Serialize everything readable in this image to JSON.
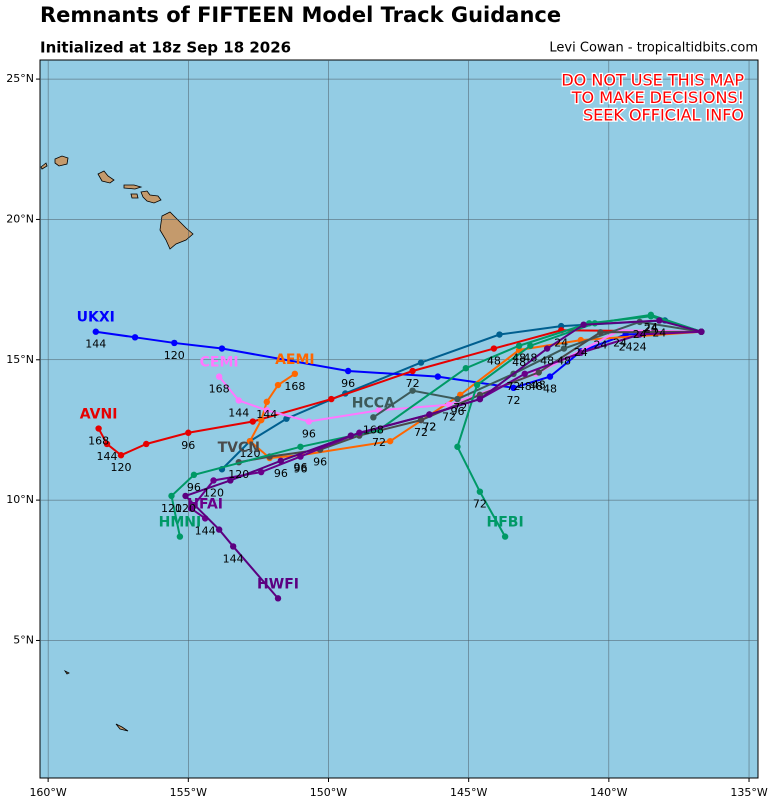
{
  "chart_data": {
    "type": "track-map",
    "title": "Remnants of FIFTEEN Model Track Guidance",
    "subtitle": "Initialized at 18z Sep 18 2026",
    "credit": "Levi Cowan - tropicaltidbits.com",
    "warning": [
      "DO NOT USE THIS MAP",
      "TO MAKE DECISIONS!",
      "SEEK OFFICIAL INFO"
    ],
    "warning_color": "#ff0000",
    "background": "#93cce4",
    "grid": true,
    "xlim": [
      -160.29,
      -134.68
    ],
    "ylim": [
      0.1,
      25.68
    ],
    "xticks": [
      {
        "value": -160,
        "label": "160°W"
      },
      {
        "value": -155,
        "label": "155°W"
      },
      {
        "value": -150,
        "label": "150°W"
      },
      {
        "value": -145,
        "label": "145°W"
      },
      {
        "value": -140,
        "label": "140°W"
      },
      {
        "value": -135,
        "label": "135°W"
      }
    ],
    "yticks": [
      {
        "value": 25,
        "label": "25°N"
      },
      {
        "value": 20,
        "label": "20°N"
      },
      {
        "value": 15,
        "label": "15°N"
      },
      {
        "value": 10,
        "label": "10°N"
      },
      {
        "value": 5,
        "label": "5°N"
      }
    ],
    "series": [
      {
        "color": "#005f8f",
        "x": [
          -136.7,
          -138.0,
          -141.7,
          -143.9,
          -146.7,
          -149.4,
          -151.5,
          -152.8,
          -153.8
        ],
        "values": [
          16.0,
          16.4,
          16.2,
          15.9,
          14.9,
          13.8,
          12.9,
          12.1,
          11.1
        ]
      },
      {
        "name": "UKXI",
        "color": "#0000ff",
        "x": [
          -136.7,
          -139.4,
          -141.0,
          -142.1,
          -143.4,
          -146.1,
          -149.3,
          -153.8,
          -155.5,
          -156.9,
          -158.3
        ],
        "values": [
          16.0,
          15.9,
          15.3,
          14.4,
          14.0,
          14.4,
          14.6,
          15.4,
          15.6,
          15.8,
          16.0
        ],
        "point_labels": [
          null,
          "24",
          null,
          "48",
          "72",
          null,
          "96",
          null,
          "120",
          null,
          "144"
        ]
      },
      {
        "name": "AVNI",
        "color": "#e60000",
        "x": [
          -136.7,
          -141.7,
          -144.1,
          -147.0,
          -149.9,
          -152.7,
          -155.0,
          -156.5,
          -157.4,
          -157.9,
          -158.2
        ],
        "values": [
          16.0,
          16.05,
          15.4,
          14.6,
          13.6,
          12.8,
          12.4,
          12.0,
          11.6,
          12.0,
          12.55
        ],
        "point_labels": [
          null,
          "24",
          "48",
          "72",
          null,
          null,
          "96",
          null,
          "120",
          "144",
          "168"
        ]
      },
      {
        "name": "AEMI",
        "color": "#ff6600",
        "x": [
          -136.7,
          -141.0,
          -143.2,
          -145.3,
          -147.8,
          -151.0,
          -152.1,
          -152.8,
          -152.4,
          -152.2,
          -151.8,
          -151.2
        ],
        "values": [
          16.0,
          15.7,
          15.35,
          13.75,
          12.1,
          11.6,
          11.5,
          12.1,
          12.85,
          13.5,
          14.1,
          14.5
        ],
        "point_labels": [
          null,
          "24",
          "48",
          "72",
          null,
          "96",
          null,
          "120",
          null,
          "144",
          null,
          "168"
        ]
      },
      {
        "name": "CEMI",
        "color": "#ff77ff",
        "x": [
          -136.7,
          -139.6,
          -142.6,
          -145.7,
          -148.2,
          -150.7,
          -152.2,
          -153.2,
          -153.9
        ],
        "values": [
          16.0,
          16.05,
          14.5,
          13.4,
          13.2,
          12.8,
          13.2,
          13.55,
          14.4
        ],
        "point_labels": [
          null,
          "24",
          "48",
          "72",
          null,
          "96",
          null,
          "144",
          "168"
        ]
      },
      {
        "name": "HCCA",
        "color": "#3d5a5a",
        "x": [
          -136.7,
          -138.9,
          -141.6,
          -143.4,
          -145.4,
          -147.0,
          -148.4
        ],
        "values": [
          16.0,
          16.35,
          15.4,
          14.5,
          13.6,
          13.9,
          12.95
        ],
        "point_labels": [
          null,
          "24",
          "48",
          "72",
          "96",
          null,
          "168"
        ]
      },
      {
        "name": "TVCN",
        "color": "#4a4a4a",
        "x": [
          -136.7,
          -140.3,
          -142.5,
          -144.6,
          -146.7,
          -148.9,
          -150.3,
          -152.1,
          -153.2
        ],
        "values": [
          16.0,
          15.98,
          14.55,
          13.75,
          12.85,
          12.3,
          11.8,
          11.55,
          11.35
        ],
        "point_labels": [
          null,
          "24",
          "48",
          null,
          "72",
          null,
          "96",
          null,
          "120"
        ]
      },
      {
        "name": "HMNI",
        "color": "#009966",
        "x": [
          -136.7,
          -138.5,
          -140.7,
          -143.2,
          -145.1,
          -148.2,
          -151.0,
          -154.8,
          -155.6,
          -155.3
        ],
        "values": [
          16.0,
          16.55,
          16.3,
          15.5,
          14.7,
          12.5,
          11.9,
          10.9,
          10.15,
          8.7
        ],
        "point_labels": [
          null,
          "24",
          null,
          "48",
          null,
          "72",
          null,
          "96",
          "120",
          null
        ]
      },
      {
        "name": "HFBI",
        "color": "#009966",
        "x": [
          -136.7,
          -138.5,
          -140.5,
          -142.8,
          -144.7,
          -145.4,
          -144.6,
          -143.7
        ],
        "values": [
          16.0,
          16.6,
          16.3,
          15.5,
          14.1,
          11.9,
          10.3,
          8.7
        ],
        "point_labels": [
          null,
          "24",
          null,
          "48",
          null,
          null,
          "72",
          null
        ]
      },
      {
        "name": "HFAI",
        "color": "#6a008a",
        "x": [
          -136.7,
          -138.9,
          -141.0,
          -143.0,
          -144.6,
          -146.4,
          -148.9,
          -151.0,
          -152.4,
          -154.1,
          -154.9,
          -154.4
        ],
        "values": [
          16.0,
          15.9,
          15.25,
          14.5,
          13.6,
          13.05,
          12.4,
          11.55,
          11.0,
          10.7,
          9.7,
          9.35
        ],
        "point_labels": [
          null,
          "24",
          null,
          "48",
          null,
          "72",
          null,
          "96",
          null,
          "120",
          null,
          "144"
        ]
      },
      {
        "name": "HWFI",
        "color": "#5c0080",
        "x": [
          -136.7,
          -138.2,
          -140.9,
          -142.2,
          -144.6,
          -146.4,
          -149.2,
          -151.7,
          -153.5,
          -155.1,
          -153.9,
          -153.4,
          -151.8
        ],
        "values": [
          16.0,
          16.4,
          16.25,
          15.4,
          13.6,
          13.05,
          12.3,
          11.4,
          10.7,
          10.15,
          8.95,
          8.35,
          6.5
        ],
        "point_labels": [
          null,
          "24",
          null,
          "48",
          null,
          "72",
          null,
          "96",
          null,
          "120",
          null,
          "144",
          null
        ]
      }
    ]
  }
}
